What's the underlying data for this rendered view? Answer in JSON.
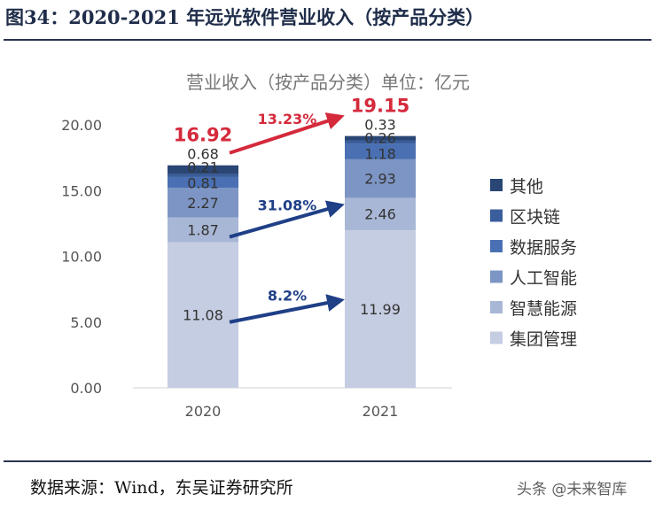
{
  "header": {
    "figure_title": "图34：2020-2021 年远光软件营业收入（按产品分类）"
  },
  "footer": {
    "source": "数据来源：Wind，东吴证券研究所",
    "watermark": "头条 @未来智库"
  },
  "chart_data": {
    "type": "bar",
    "stacked": true,
    "title": "营业收入（按产品分类）单位：亿元",
    "categories": [
      "2020",
      "2021"
    ],
    "series": [
      {
        "name": "集团管理",
        "values": [
          11.08,
          11.99
        ],
        "color": "#c5cde2"
      },
      {
        "name": "智慧能源",
        "values": [
          1.87,
          2.46
        ],
        "color": "#a9b7d6"
      },
      {
        "name": "人工智能",
        "values": [
          2.27,
          2.93
        ],
        "color": "#7d95c4"
      },
      {
        "name": "数据服务",
        "values": [
          0.81,
          1.18
        ],
        "color": "#4a70b3"
      },
      {
        "name": "区块链",
        "values": [
          0.21,
          0.26
        ],
        "color": "#3a5d9c"
      },
      {
        "name": "其他",
        "values": [
          0.68,
          0.33
        ],
        "color": "#294675"
      }
    ],
    "totals": [
      "16.92",
      "19.15"
    ],
    "total_color": "#d42a3c",
    "ylim": [
      0,
      20
    ],
    "yticks": [
      "0.00",
      "5.00",
      "10.00",
      "15.00",
      "20.00"
    ],
    "legend_position": "right",
    "annotations": [
      {
        "text": "13.23%",
        "color": "#d42a3c",
        "series": "total"
      },
      {
        "text": "31.08%",
        "color": "#1f3f87",
        "series": "智慧能源"
      },
      {
        "text": "8.2%",
        "color": "#1f3f87",
        "series": "集团管理"
      }
    ]
  }
}
